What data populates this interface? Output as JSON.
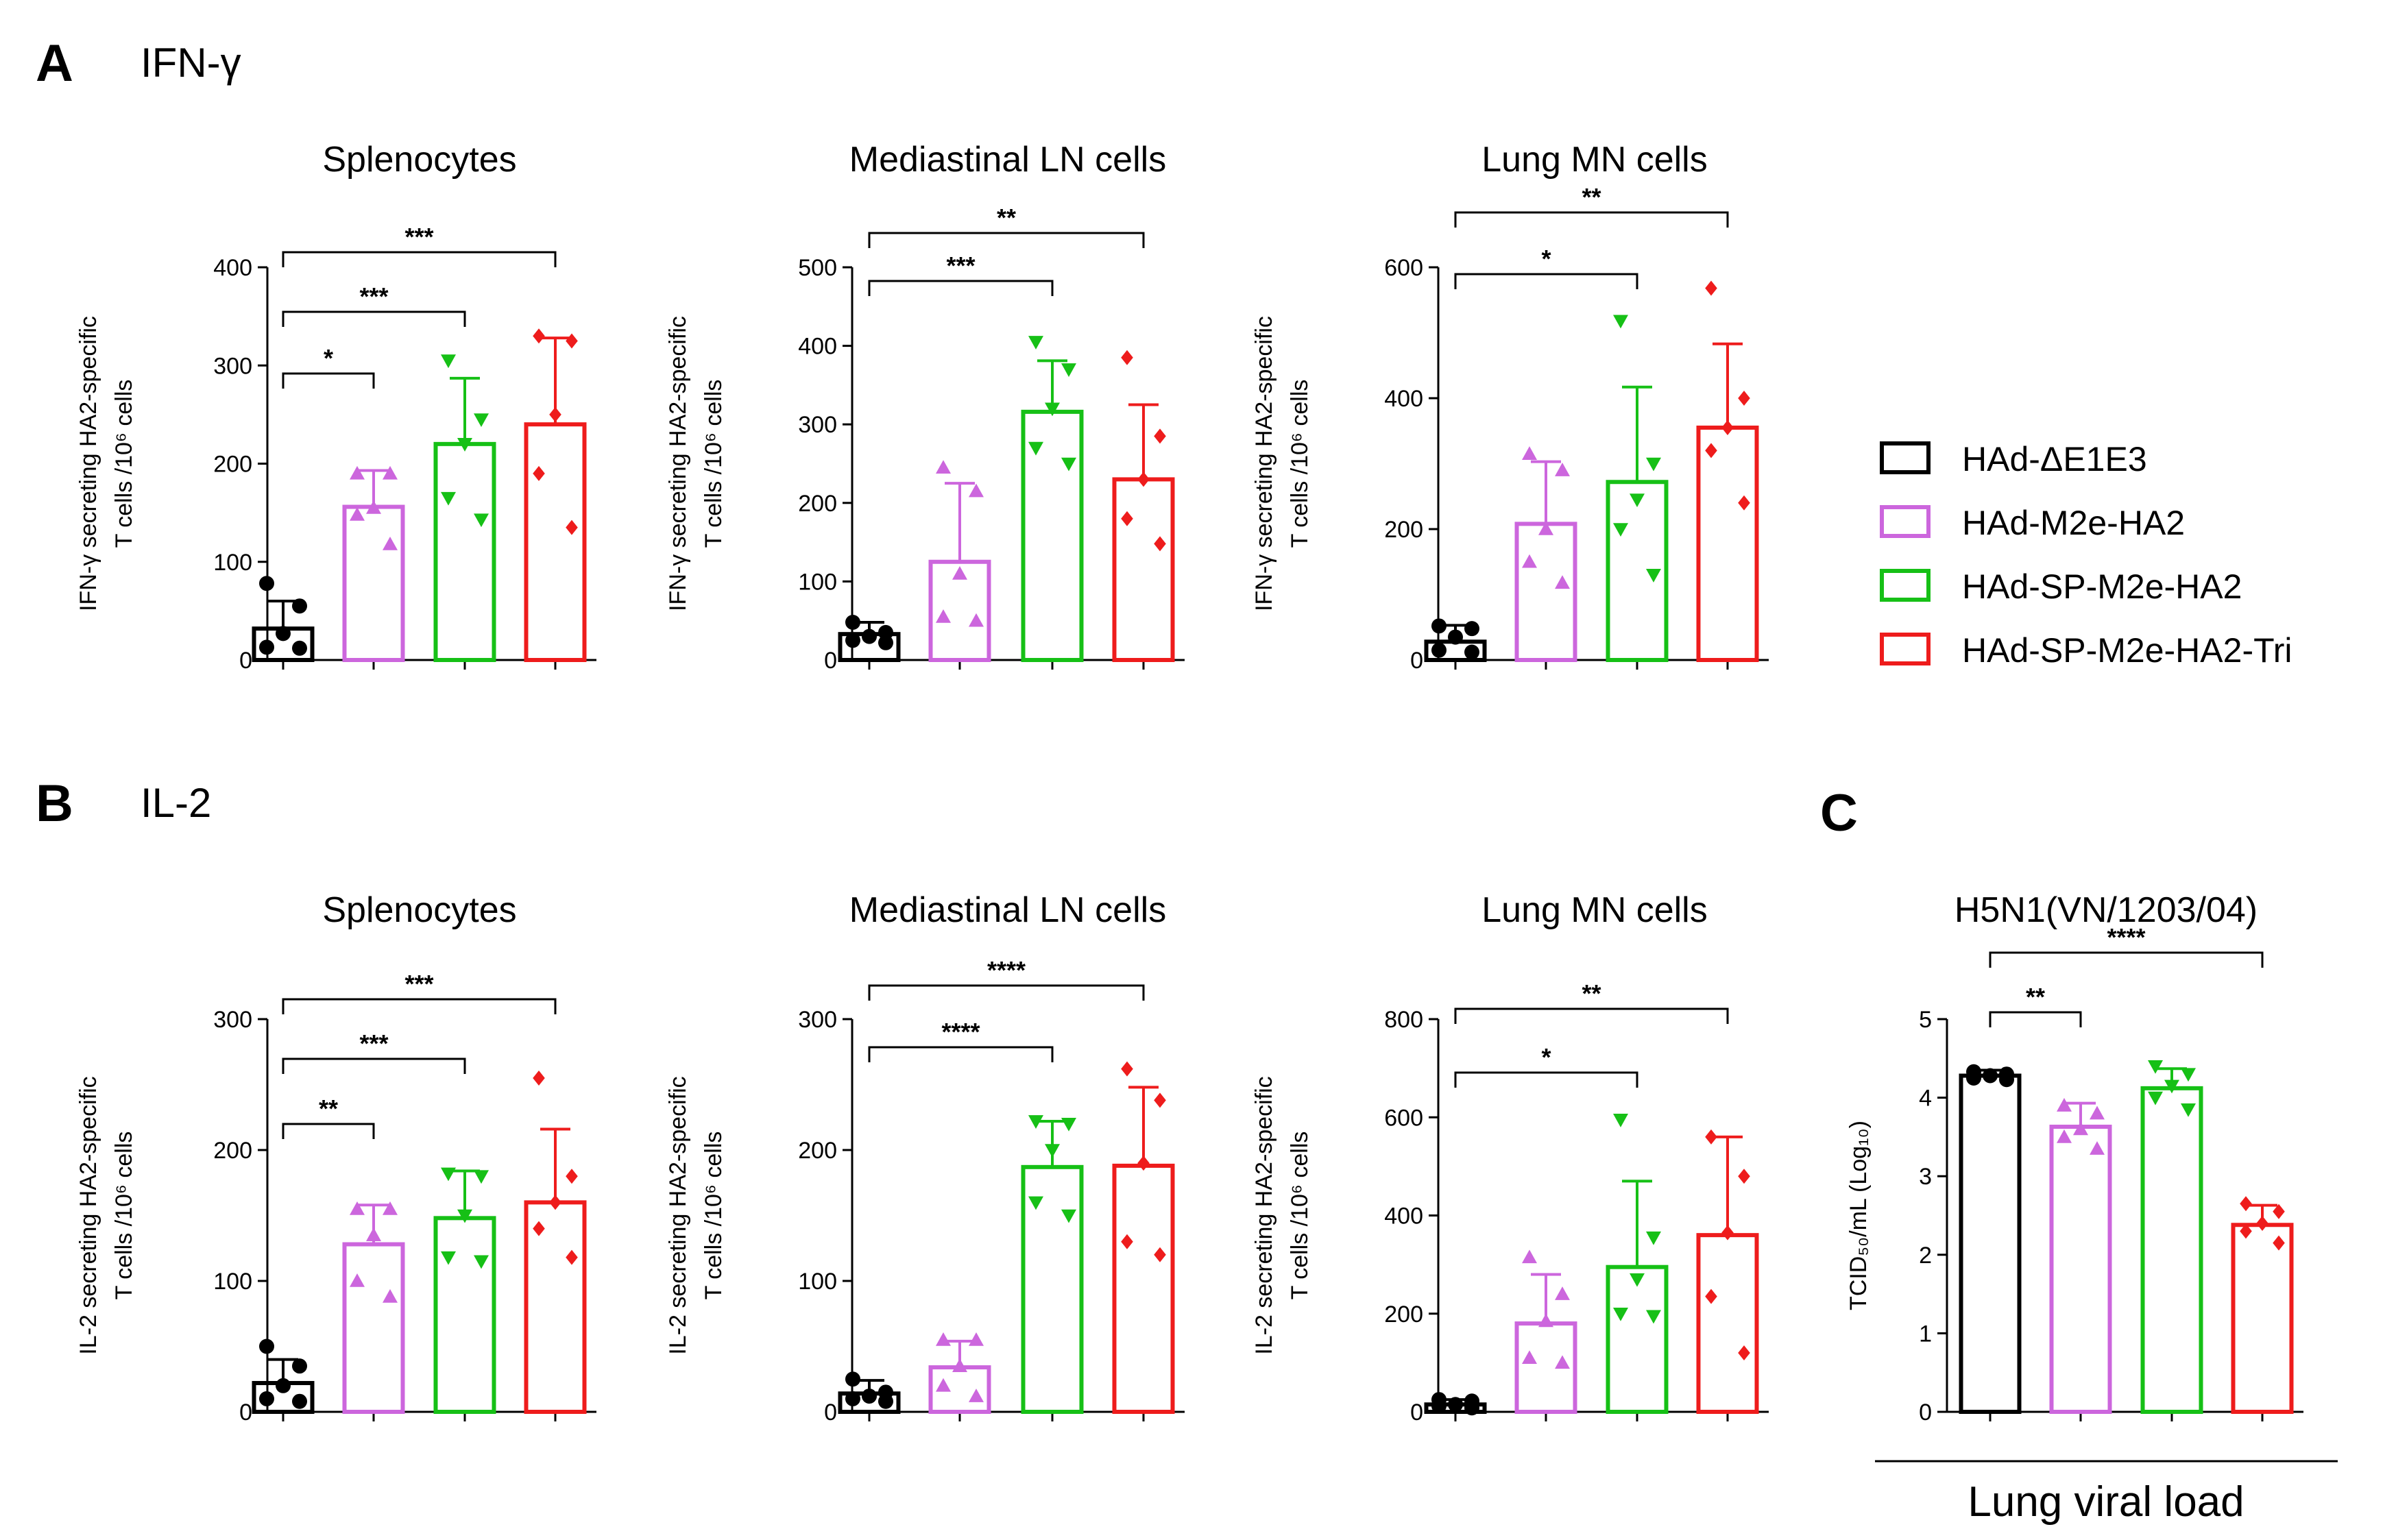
{
  "panels": {
    "A": {
      "letter": "A",
      "cytokine": "IFN-γ"
    },
    "B": {
      "letter": "B",
      "cytokine": "IL-2"
    },
    "C": {
      "letter": "C"
    }
  },
  "legend": [
    {
      "label": "HAd-ΔE1E3",
      "color": "#000000"
    },
    {
      "label": "HAd-M2e-HA2",
      "color": "#cc66dd"
    },
    {
      "label": "HAd-SP-M2e-HA2",
      "color": "#16c016"
    },
    {
      "label": "HAd-SP-M2e-HA2-Tri",
      "color": "#ee1c1c"
    }
  ],
  "footer_label": "Lung viral load",
  "chart_data": [
    {
      "id": "A1",
      "type": "bar",
      "title": "Splenocytes",
      "ylabel_line1": "IFN-γ secreting HA2-specific",
      "ylabel_line2": "T cells /10⁶ cells",
      "ylim": [
        0,
        400
      ],
      "ticks": [
        "0",
        "100",
        "200",
        "300",
        "400"
      ],
      "series": [
        {
          "group": "HAd-ΔE1E3",
          "mean": 32,
          "error": 28,
          "points": [
            78,
            55,
            27,
            13,
            12
          ]
        },
        {
          "group": "HAd-M2e-HA2",
          "mean": 156,
          "error": 37,
          "points": [
            190,
            190,
            155,
            148,
            118
          ]
        },
        {
          "group": "HAd-SP-M2e-HA2",
          "mean": 220,
          "error": 67,
          "points": [
            305,
            245,
            220,
            165,
            143
          ]
        },
        {
          "group": "HAd-SP-M2e-HA2-Tri",
          "mean": 240,
          "error": 88,
          "points": [
            330,
            325,
            250,
            190,
            135
          ]
        }
      ],
      "comparisons": [
        {
          "from": 0,
          "to": 1,
          "label": "*"
        },
        {
          "from": 0,
          "to": 2,
          "label": "***"
        },
        {
          "from": 0,
          "to": 3,
          "label": "***"
        }
      ]
    },
    {
      "id": "A2",
      "type": "bar",
      "title": "Mediastinal LN cells",
      "ylabel_line1": "IFN-γ secreting HA2-specific",
      "ylabel_line2": "T cells /10⁶ cells",
      "ylim": [
        0,
        500
      ],
      "ticks": [
        "0",
        "100",
        "200",
        "300",
        "400",
        "500"
      ],
      "series": [
        {
          "group": "HAd-ΔE1E3",
          "mean": 33,
          "error": 15,
          "points": [
            48,
            35,
            30,
            25,
            22
          ]
        },
        {
          "group": "HAd-M2e-HA2",
          "mean": 125,
          "error": 100,
          "points": [
            245,
            215,
            110,
            55,
            50
          ]
        },
        {
          "group": "HAd-SP-M2e-HA2",
          "mean": 316,
          "error": 65,
          "points": [
            405,
            370,
            320,
            270,
            250
          ]
        },
        {
          "group": "HAd-SP-M2e-HA2-Tri",
          "mean": 230,
          "error": 95,
          "points": [
            385,
            285,
            230,
            180,
            148
          ]
        }
      ],
      "comparisons": [
        {
          "from": 0,
          "to": 2,
          "label": "***"
        },
        {
          "from": 0,
          "to": 3,
          "label": "**"
        }
      ]
    },
    {
      "id": "A3",
      "type": "bar",
      "title": "Lung MN cells",
      "ylabel_line1": "IFN-γ secreting HA2-specific",
      "ylabel_line2": "T cells /10⁶ cells",
      "ylim": [
        0,
        600
      ],
      "ticks": [
        "0",
        "200",
        "400",
        "600"
      ],
      "series": [
        {
          "group": "HAd-ΔE1E3",
          "mean": 28,
          "error": 25,
          "points": [
            52,
            48,
            35,
            15,
            12
          ]
        },
        {
          "group": "HAd-M2e-HA2",
          "mean": 208,
          "error": 95,
          "points": [
            315,
            290,
            200,
            150,
            118
          ]
        },
        {
          "group": "HAd-SP-M2e-HA2",
          "mean": 272,
          "error": 145,
          "points": [
            518,
            300,
            245,
            200,
            130
          ]
        },
        {
          "group": "HAd-SP-M2e-HA2-Tri",
          "mean": 355,
          "error": 128,
          "points": [
            568,
            400,
            355,
            320,
            240
          ]
        }
      ],
      "comparisons": [
        {
          "from": 0,
          "to": 2,
          "label": "*"
        },
        {
          "from": 0,
          "to": 3,
          "label": "**"
        }
      ]
    },
    {
      "id": "B1",
      "type": "bar",
      "title": "Splenocytes",
      "ylabel_line1": "IL-2 secreting HA2-specific",
      "ylabel_line2": "T cells /10⁶ cells",
      "ylim": [
        0,
        300
      ],
      "ticks": [
        "0",
        "100",
        "200",
        "300"
      ],
      "series": [
        {
          "group": "HAd-ΔE1E3",
          "mean": 22,
          "error": 18,
          "points": [
            50,
            35,
            20,
            10,
            8
          ]
        },
        {
          "group": "HAd-M2e-HA2",
          "mean": 128,
          "error": 30,
          "points": [
            155,
            155,
            135,
            100,
            88
          ]
        },
        {
          "group": "HAd-SP-M2e-HA2",
          "mean": 148,
          "error": 36,
          "points": [
            182,
            180,
            150,
            118,
            115
          ]
        },
        {
          "group": "HAd-SP-M2e-HA2-Tri",
          "mean": 160,
          "error": 56,
          "points": [
            255,
            180,
            160,
            140,
            118
          ]
        }
      ],
      "comparisons": [
        {
          "from": 0,
          "to": 1,
          "label": "**"
        },
        {
          "from": 0,
          "to": 2,
          "label": "***"
        },
        {
          "from": 0,
          "to": 3,
          "label": "***"
        }
      ]
    },
    {
      "id": "B2",
      "type": "bar",
      "title": "Mediastinal LN cells",
      "ylabel_line1": "IL-2 secreting HA2-specific",
      "ylabel_line2": "T cells /10⁶ cells",
      "ylim": [
        0,
        300
      ],
      "ticks": [
        "0",
        "100",
        "200",
        "300"
      ],
      "series": [
        {
          "group": "HAd-ΔE1E3",
          "mean": 14,
          "error": 10,
          "points": [
            25,
            15,
            12,
            10,
            8
          ]
        },
        {
          "group": "HAd-M2e-HA2",
          "mean": 34,
          "error": 20,
          "points": [
            55,
            55,
            35,
            20,
            12
          ]
        },
        {
          "group": "HAd-SP-M2e-HA2",
          "mean": 187,
          "error": 35,
          "points": [
            222,
            220,
            200,
            160,
            150
          ]
        },
        {
          "group": "HAd-SP-M2e-HA2-Tri",
          "mean": 188,
          "error": 60,
          "points": [
            262,
            238,
            190,
            130,
            120
          ]
        }
      ],
      "comparisons": [
        {
          "from": 0,
          "to": 2,
          "label": "****"
        },
        {
          "from": 0,
          "to": 3,
          "label": "****"
        }
      ]
    },
    {
      "id": "B3",
      "type": "bar",
      "title": "Lung MN cells",
      "ylabel_line1": "IL-2 secreting HA2-specific",
      "ylabel_line2": "T cells /10⁶ cells",
      "ylim": [
        0,
        800
      ],
      "ticks": [
        "0",
        "200",
        "400",
        "600",
        "800"
      ],
      "series": [
        {
          "group": "HAd-ΔE1E3",
          "mean": 15,
          "error": 10,
          "points": [
            25,
            22,
            15,
            12,
            8
          ]
        },
        {
          "group": "HAd-M2e-HA2",
          "mean": 180,
          "error": 100,
          "points": [
            315,
            240,
            185,
            110,
            100
          ]
        },
        {
          "group": "HAd-SP-M2e-HA2",
          "mean": 295,
          "error": 175,
          "points": [
            595,
            355,
            270,
            200,
            195
          ]
        },
        {
          "group": "HAd-SP-M2e-HA2-Tri",
          "mean": 360,
          "error": 200,
          "points": [
            560,
            480,
            365,
            235,
            120
          ]
        }
      ],
      "comparisons": [
        {
          "from": 0,
          "to": 2,
          "label": "*"
        },
        {
          "from": 0,
          "to": 3,
          "label": "**"
        }
      ]
    },
    {
      "id": "C",
      "type": "bar",
      "title": "H5N1(VN/1203/04)",
      "ylabel_line1": "TCID₅₀/mL (Log₁₀)",
      "ylabel_line2": "",
      "ylim": [
        0,
        5
      ],
      "ticks": [
        "0",
        "1",
        "2",
        "3",
        "4",
        "5"
      ],
      "series": [
        {
          "group": "HAd-ΔE1E3",
          "mean": 4.28,
          "error": 0.07,
          "points": [
            4.33,
            4.3,
            4.28,
            4.25,
            4.23
          ]
        },
        {
          "group": "HAd-M2e-HA2",
          "mean": 3.63,
          "error": 0.3,
          "points": [
            3.9,
            3.8,
            3.6,
            3.5,
            3.35
          ]
        },
        {
          "group": "HAd-SP-M2e-HA2",
          "mean": 4.12,
          "error": 0.25,
          "points": [
            4.4,
            4.3,
            4.15,
            4.0,
            3.85
          ]
        },
        {
          "group": "HAd-SP-M2e-HA2-Tri",
          "mean": 2.38,
          "error": 0.25,
          "points": [
            2.65,
            2.55,
            2.4,
            2.3,
            2.15
          ]
        }
      ],
      "comparisons": [
        {
          "from": 0,
          "to": 1,
          "label": "**"
        },
        {
          "from": 0,
          "to": 3,
          "label": "****"
        }
      ]
    }
  ]
}
